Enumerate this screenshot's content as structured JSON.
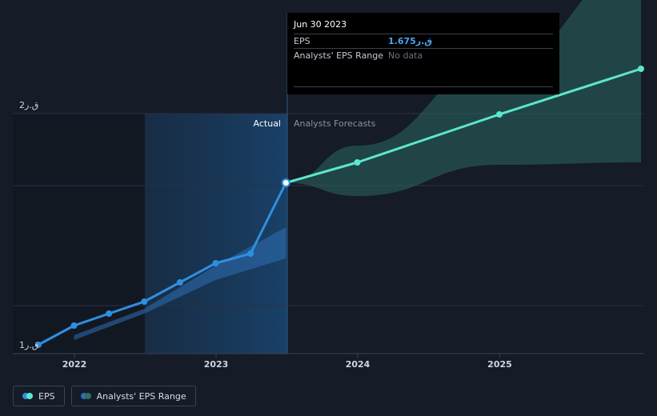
{
  "chart_data": {
    "type": "line",
    "title": "",
    "xlabel": "",
    "ylabel": "",
    "x_ticks": [
      "2022",
      "2023",
      "2024",
      "2025"
    ],
    "y_ticks": [
      "1ق.ر",
      "2ق.ر"
    ],
    "ylim": [
      1.0,
      2.0
    ],
    "regions": {
      "actual_label": "Actual",
      "forecast_label": "Analysts Forecasts"
    },
    "series": [
      {
        "name": "EPS",
        "color": "#2e8fe0",
        "points": [
          {
            "x": "2021-09-30",
            "y": 1.0
          },
          {
            "x": "2021-12-31",
            "y": 1.08
          },
          {
            "x": "2022-03-31",
            "y": 1.13
          },
          {
            "x": "2022-06-30",
            "y": 1.18
          },
          {
            "x": "2022-09-30",
            "y": 1.26
          },
          {
            "x": "2022-12-31",
            "y": 1.34
          },
          {
            "x": "2023-03-31",
            "y": 1.38
          },
          {
            "x": "2023-06-30",
            "y": 1.675
          }
        ]
      },
      {
        "name": "EPS Forecast",
        "color": "#5ce6cf",
        "points": [
          {
            "x": "2023-06-30",
            "y": 1.675
          },
          {
            "x": "2023-12-31",
            "y": 1.76
          },
          {
            "x": "2024-12-31",
            "y": 1.96
          },
          {
            "x": "2025-12-31",
            "y": 2.15
          }
        ]
      }
    ],
    "range_band": {
      "name": "Analysts' EPS Range",
      "color": "#2e6f66",
      "points": [
        {
          "x": "2023-06-30",
          "low": 1.675,
          "high": 1.675
        },
        {
          "x": "2023-12-31",
          "low": 1.62,
          "high": 1.83
        },
        {
          "x": "2024-12-31",
          "low": 1.75,
          "high": 2.17
        },
        {
          "x": "2025-12-31",
          "low": 1.76,
          "high": 2.57
        }
      ]
    },
    "actual_band": {
      "color": "#2d6fb4",
      "points": [
        {
          "x": "2021-12-31",
          "low": 1.02,
          "high": 1.04
        },
        {
          "x": "2022-06-30",
          "low": 1.13,
          "high": 1.15
        },
        {
          "x": "2022-12-31",
          "low": 1.27,
          "high": 1.33
        },
        {
          "x": "2023-06-30",
          "low": 1.36,
          "high": 1.49
        }
      ]
    }
  },
  "tooltip": {
    "date": "Jun 30 2023",
    "rows": [
      {
        "label": "EPS",
        "value": "1.675ق.ر"
      },
      {
        "label": "Analysts' EPS Range",
        "value": "No data"
      }
    ]
  },
  "legend": {
    "items": [
      {
        "label": "EPS",
        "colors": [
          "#2e8fe0",
          "#5ce6cf"
        ]
      },
      {
        "label": "Analysts' EPS Range",
        "colors": [
          "#2d6fb4",
          "#2e6f66"
        ]
      }
    ]
  }
}
